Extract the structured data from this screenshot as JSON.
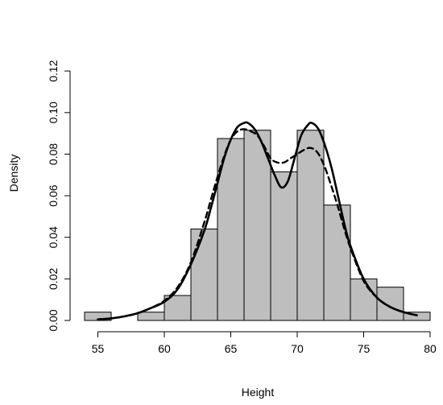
{
  "chart_data": {
    "type": "bar",
    "xlabel": "Height",
    "ylabel": "Density",
    "xlim": [
      53.5,
      80
    ],
    "ylim": [
      0,
      0.12
    ],
    "x_ticks": [
      "55",
      "60",
      "65",
      "70",
      "75",
      "80"
    ],
    "y_ticks": [
      "0.00",
      "0.02",
      "0.04",
      "0.06",
      "0.08",
      "0.10",
      "0.12"
    ],
    "grid": false,
    "bins": [
      {
        "from": 54,
        "to": 56,
        "density": 0.004
      },
      {
        "from": 56,
        "to": 58,
        "density": 0.0
      },
      {
        "from": 58,
        "to": 60,
        "density": 0.004
      },
      {
        "from": 60,
        "to": 62,
        "density": 0.012
      },
      {
        "from": 62,
        "to": 64,
        "density": 0.044
      },
      {
        "from": 64,
        "to": 66,
        "density": 0.0875
      },
      {
        "from": 66,
        "to": 68,
        "density": 0.0915
      },
      {
        "from": 68,
        "to": 70,
        "density": 0.0715
      },
      {
        "from": 70,
        "to": 72,
        "density": 0.0915
      },
      {
        "from": 72,
        "to": 74,
        "density": 0.0555
      },
      {
        "from": 74,
        "to": 76,
        "density": 0.02
      },
      {
        "from": 76,
        "to": 78,
        "density": 0.016
      },
      {
        "from": 78,
        "to": 80,
        "density": 0.004
      }
    ],
    "series": [
      {
        "style": "solid",
        "x": [
          55,
          56,
          57,
          58,
          59,
          60,
          61,
          62,
          63,
          63.5,
          64,
          64.5,
          65,
          65.5,
          66,
          66.3,
          66.8,
          67.3,
          67.8,
          68.3,
          68.8,
          69.3,
          69.8,
          70.3,
          70.8,
          71.1,
          71.6,
          72.1,
          72.6,
          73.1,
          73.6,
          74,
          75,
          76,
          77,
          78,
          79
        ],
        "y": [
          0.0005,
          0.001,
          0.002,
          0.0035,
          0.006,
          0.009,
          0.015,
          0.027,
          0.043,
          0.054,
          0.066,
          0.078,
          0.087,
          0.093,
          0.095,
          0.095,
          0.092,
          0.086,
          0.078,
          0.07,
          0.064,
          0.067,
          0.078,
          0.089,
          0.094,
          0.095,
          0.092,
          0.084,
          0.073,
          0.059,
          0.045,
          0.036,
          0.02,
          0.011,
          0.0065,
          0.004,
          0.0025
        ]
      },
      {
        "style": "dashed",
        "x": [
          55,
          56,
          57,
          58,
          59,
          60,
          61,
          62,
          63,
          63.5,
          64,
          64.5,
          65,
          65.5,
          66,
          66.5,
          67,
          67.5,
          68,
          68.5,
          69,
          69.5,
          70,
          70.5,
          71,
          71.5,
          72,
          72.5,
          73,
          73.5,
          74,
          75,
          76,
          77,
          78,
          79
        ],
        "y": [
          0.0005,
          0.001,
          0.002,
          0.0035,
          0.006,
          0.0095,
          0.016,
          0.028,
          0.047,
          0.058,
          0.069,
          0.079,
          0.087,
          0.091,
          0.092,
          0.091,
          0.089,
          0.084,
          0.078,
          0.076,
          0.076,
          0.078,
          0.08,
          0.082,
          0.083,
          0.081,
          0.075,
          0.066,
          0.056,
          0.045,
          0.035,
          0.019,
          0.011,
          0.0065,
          0.004,
          0.0025
        ]
      }
    ]
  }
}
